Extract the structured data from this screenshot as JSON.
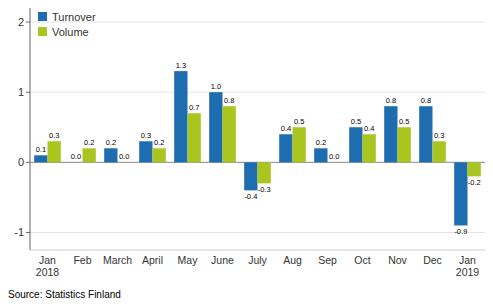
{
  "chart_data": {
    "type": "bar",
    "categories": [
      "Jan\n2018",
      "Feb",
      "March",
      "April",
      "May",
      "June",
      "July",
      "Aug",
      "Sep",
      "Oct",
      "Nov",
      "Dec",
      "Jan\n2019"
    ],
    "series": [
      {
        "name": "Turnover",
        "color": "#1e6db0",
        "values": [
          0.1,
          0.0,
          0.2,
          0.3,
          1.3,
          1.0,
          -0.4,
          0.4,
          0.2,
          0.5,
          0.8,
          0.8,
          -0.9
        ],
        "value_labels": [
          "0.1",
          "0.0",
          "0.2",
          "0.3",
          "1.3",
          "1.0",
          "-0.4",
          "0.4",
          "0.2",
          "0.5",
          "0.8",
          "0.8",
          "-0.9"
        ]
      },
      {
        "name": "Volume",
        "color": "#aac520",
        "values": [
          0.3,
          0.2,
          0.0,
          0.2,
          0.7,
          0.8,
          -0.3,
          0.5,
          0.0,
          0.4,
          0.5,
          0.3,
          -0.2
        ],
        "value_labels": [
          "0.3",
          "0.2",
          "0.0",
          "0.2",
          "0.7",
          "0.8",
          "-0.3",
          "0.5",
          "0.0",
          "0.4",
          "0.5",
          "0.3",
          "-0.2"
        ]
      }
    ],
    "ylim": [
      -1.25,
      2.2
    ],
    "yticks": [
      -1,
      0,
      1,
      2
    ],
    "grid": true,
    "legend": "upper left",
    "data_labels": true,
    "source": "Source: Statistics Finland"
  }
}
